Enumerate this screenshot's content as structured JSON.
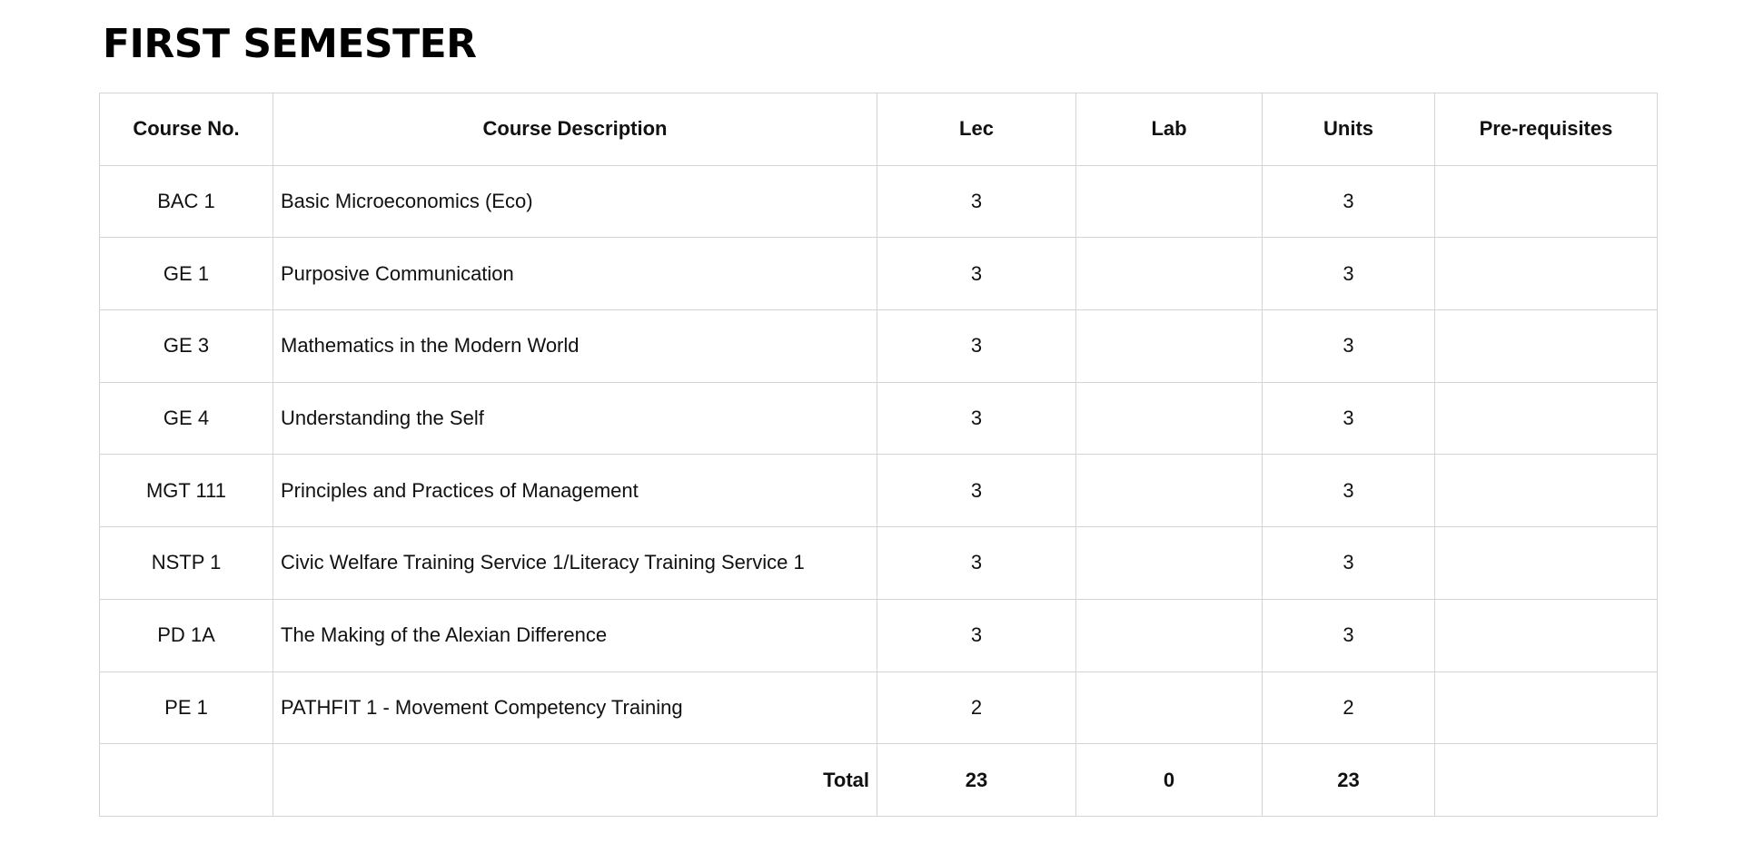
{
  "title": "FIRST SEMESTER",
  "columns": {
    "course_no": "Course No.",
    "description": "Course Description",
    "lec": "Lec",
    "lab": "Lab",
    "units": "Units",
    "prereq": "Pre-requisites"
  },
  "rows": [
    {
      "course_no": "BAC 1",
      "description": "Basic Microeconomics (Eco)",
      "lec": "3",
      "lab": "",
      "units": "3",
      "prereq": ""
    },
    {
      "course_no": "GE 1",
      "description": "Purposive Communication",
      "lec": "3",
      "lab": "",
      "units": "3",
      "prereq": ""
    },
    {
      "course_no": "GE 3",
      "description": "Mathematics in the Modern World",
      "lec": "3",
      "lab": "",
      "units": "3",
      "prereq": ""
    },
    {
      "course_no": "GE 4",
      "description": "Understanding the Self",
      "lec": "3",
      "lab": "",
      "units": "3",
      "prereq": ""
    },
    {
      "course_no": "MGT 111",
      "description": "Principles and Practices of Management",
      "lec": "3",
      "lab": "",
      "units": "3",
      "prereq": ""
    },
    {
      "course_no": "NSTP 1",
      "description": "Civic Welfare Training Service 1/Literacy Training Service 1",
      "lec": "3",
      "lab": "",
      "units": "3",
      "prereq": ""
    },
    {
      "course_no": "PD 1A",
      "description": "The Making of the Alexian Difference",
      "lec": "3",
      "lab": "",
      "units": "3",
      "prereq": ""
    },
    {
      "course_no": "PE 1",
      "description": "PATHFIT 1 - Movement Competency Training",
      "lec": "2",
      "lab": "",
      "units": "2",
      "prereq": ""
    }
  ],
  "total": {
    "label": "Total",
    "lec": "23",
    "lab": "0",
    "units": "23"
  }
}
